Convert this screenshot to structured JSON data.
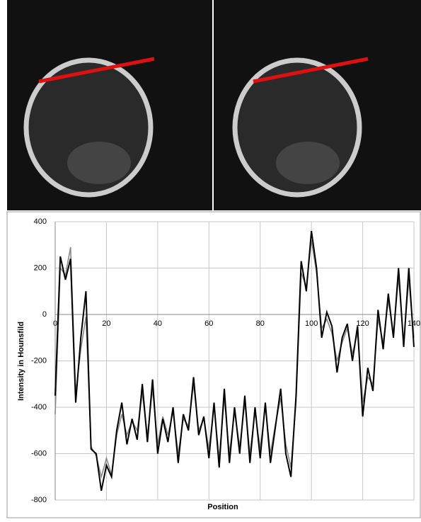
{
  "chart_data": {
    "type": "line",
    "x_label": "Position",
    "y_label": "Intensity in Hounsfild",
    "x": [
      0,
      2,
      4,
      6,
      8,
      10,
      12,
      14,
      16,
      18,
      20,
      22,
      24,
      26,
      28,
      30,
      32,
      34,
      36,
      38,
      40,
      42,
      44,
      46,
      48,
      50,
      52,
      54,
      56,
      58,
      60,
      62,
      64,
      66,
      68,
      70,
      72,
      74,
      76,
      78,
      80,
      82,
      84,
      86,
      88,
      90,
      92,
      94,
      96,
      98,
      100,
      102,
      104,
      106,
      108,
      110,
      112,
      114,
      116,
      118,
      120,
      122,
      124,
      126,
      128,
      130,
      132,
      134,
      136,
      138,
      140
    ],
    "series": [
      {
        "color": "#888888",
        "values": [
          -430,
          200,
          170,
          290,
          -340,
          -150,
          -10,
          -570,
          -610,
          -700,
          -620,
          -690,
          -520,
          -430,
          -520,
          -460,
          -500,
          -340,
          -520,
          -320,
          -560,
          -440,
          -520,
          -420,
          -600,
          -450,
          -480,
          -300,
          -500,
          -450,
          -580,
          -400,
          -620,
          -360,
          -600,
          -420,
          -570,
          -380,
          -600,
          -420,
          -580,
          -400,
          -600,
          -470,
          -360,
          -560,
          -660,
          -380,
          180,
          120,
          320,
          180,
          -60,
          -20,
          -80,
          -200,
          -120,
          -60,
          -170,
          -80,
          -380,
          -270,
          -300,
          -20,
          -120,
          60,
          -80,
          160,
          -120,
          150,
          -100
        ]
      },
      {
        "color": "#000000",
        "values": [
          -350,
          250,
          150,
          240,
          -380,
          -100,
          100,
          -580,
          -600,
          -760,
          -650,
          -700,
          -500,
          -380,
          -560,
          -450,
          -540,
          -300,
          -550,
          -280,
          -600,
          -450,
          -550,
          -400,
          -640,
          -430,
          -500,
          -270,
          -520,
          -440,
          -620,
          -380,
          -660,
          -320,
          -640,
          -400,
          -600,
          -350,
          -640,
          -400,
          -620,
          -380,
          -640,
          -480,
          -320,
          -600,
          -700,
          -350,
          230,
          100,
          360,
          200,
          -100,
          10,
          -50,
          -250,
          -100,
          -40,
          -200,
          -50,
          -440,
          -230,
          -330,
          20,
          -150,
          90,
          -100,
          200,
          -140,
          200,
          -140
        ]
      }
    ],
    "xlim": [
      0,
      140
    ],
    "xticks": [
      0,
      20,
      40,
      60,
      80,
      100,
      120,
      140
    ],
    "ylim": [
      -800,
      400
    ],
    "yticks": [
      -800,
      -600,
      -400,
      -200,
      0,
      200,
      400
    ],
    "grid": true
  }
}
